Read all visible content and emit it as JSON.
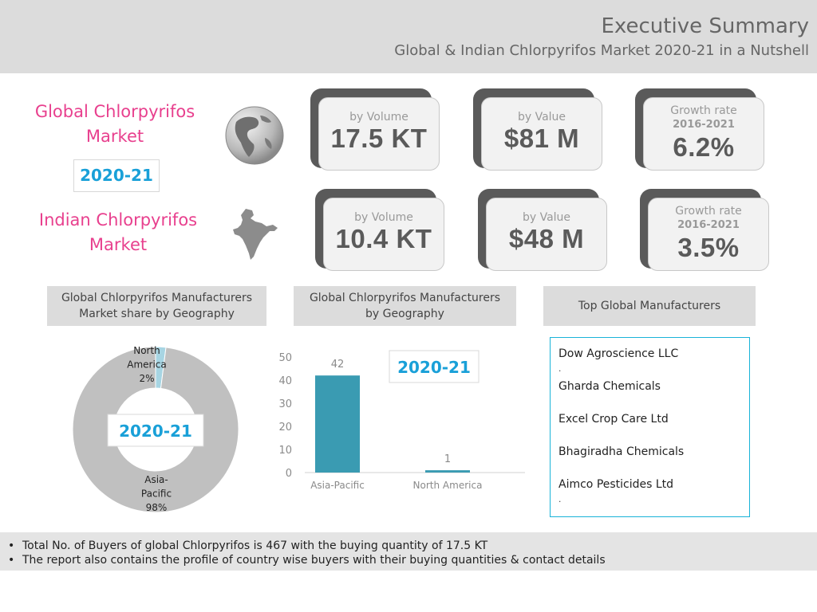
{
  "header": {
    "title": "Executive Summary",
    "subtitle": "Global & Indian Chlorpyrifos Market  2020-21 in a Nutshell"
  },
  "global_market": {
    "label_line1": "Global Chlorpyrifos",
    "label_line2": "Market",
    "year": "2020-21",
    "volume": {
      "label": "by Volume",
      "value": "17.5 KT"
    },
    "value": {
      "label": "by Value",
      "value": "$81 M"
    },
    "growth": {
      "label": "Growth rate",
      "period": "2016-2021",
      "value": "6.2%"
    }
  },
  "indian_market": {
    "label_line1": "Indian Chlorpyrifos",
    "label_line2": "Market",
    "volume": {
      "label": "by Volume",
      "value": "10.4 KT"
    },
    "value": {
      "label": "by Value",
      "value": "$48 M"
    },
    "growth": {
      "label": "Growth rate",
      "period": "2016-2021",
      "value": "3.5%"
    }
  },
  "sections": {
    "share_line1": "Global Chlorpyrifos Manufacturers",
    "share_line2": "Market share by Geography",
    "geo_line1": "Global Chlorpyrifos Manufacturers",
    "geo_line2": "by Geography",
    "top_mfr": "Top  Global Manufacturers"
  },
  "chart_data": [
    {
      "type": "pie",
      "subtype": "donut",
      "title": "Global Chlorpyrifos Manufacturers Market share by Geography",
      "center_label": "2020-21",
      "labels": [
        "North America",
        "Asia-Pacific"
      ],
      "label_lines": [
        [
          "North",
          "America",
          "2%"
        ],
        [
          "Asia-",
          "Pacific",
          "98%"
        ]
      ],
      "values": [
        2,
        98
      ],
      "colors": [
        "#a7d5e3",
        "#c0c0c0"
      ]
    },
    {
      "type": "bar",
      "title": "Global Chlorpyrifos Manufacturers by Geography",
      "annotation": "2020-21",
      "categories": [
        "Asia-Pacific",
        "North America"
      ],
      "values": [
        42,
        1
      ],
      "data_labels": [
        "42",
        "1"
      ],
      "yticks": [
        "0",
        "10",
        "20",
        "30",
        "40",
        "50"
      ],
      "ylim": [
        0,
        50
      ],
      "bar_color": "#3a9bb2"
    }
  ],
  "top_manufacturers": [
    "Dow Agroscience LLC",
    "Gharda Chemicals",
    "Excel Crop Care Ltd",
    "Bhagiradha Chemicals",
    "Aimco Pesticides Ltd"
  ],
  "mfr_dot": ".",
  "footer": {
    "bullet_char": "•",
    "line1": "Total No. of Buyers of global Chlorpyrifos is 467 with the buying quantity of  17.5 KT",
    "line2": "The report also contains the profile of  country wise buyers with their buying quantities & contact details"
  }
}
